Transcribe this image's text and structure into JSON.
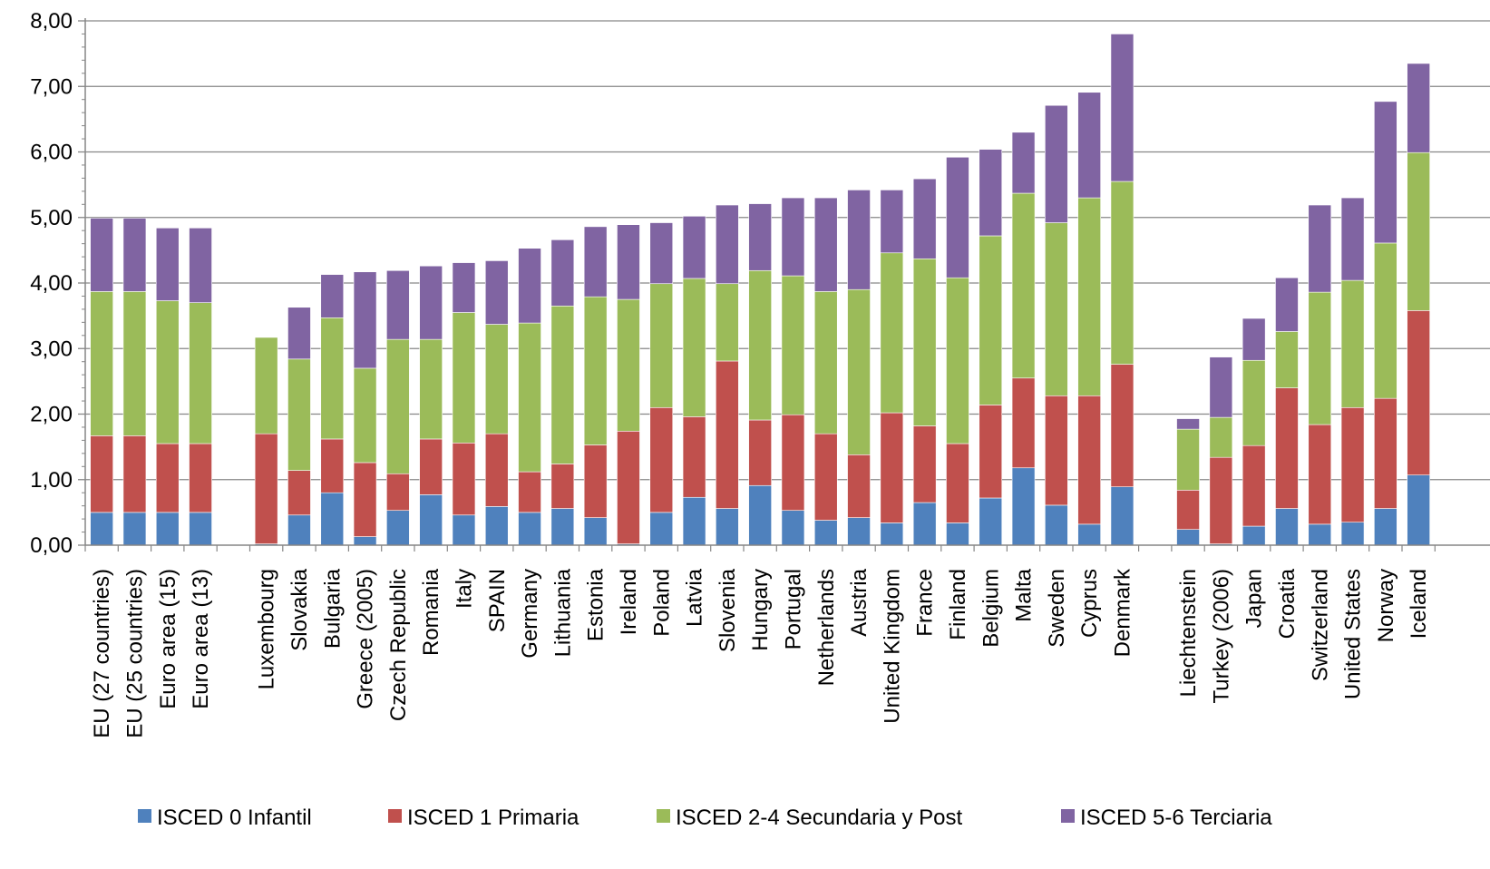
{
  "chart_data": {
    "type": "bar",
    "stacked": true,
    "title": "",
    "xlabel": "",
    "ylabel": "",
    "ylim": [
      0,
      8
    ],
    "yticks": [
      "0,00",
      "1,00",
      "2,00",
      "3,00",
      "4,00",
      "5,00",
      "6,00",
      "7,00",
      "8,00"
    ],
    "grid": true,
    "legend_position": "bottom",
    "categories": [
      "EU (27 countries)",
      "EU (25 countries)",
      "Euro area (15)",
      "Euro area (13)",
      "",
      "Luxembourg",
      "Slovakia",
      "Bulgaria",
      "Greece (2005)",
      "Czech Republic",
      "Romania",
      "Italy",
      "SPAIN",
      "Germany",
      "Lithuania",
      "Estonia",
      "Ireland",
      "Poland",
      "Latvia",
      "Slovenia",
      "Hungary",
      "Portugal",
      "Netherlands",
      "Austria",
      "United Kingdom",
      "France",
      "Finland",
      "Belgium",
      "Malta",
      "Sweden",
      "Cyprus",
      "Denmark",
      "",
      "Liechtenstein",
      "Turkey (2006)",
      "Japan",
      "Croatia",
      "Switzerland",
      "United States",
      "Norway",
      "Iceland"
    ],
    "series": [
      {
        "name": "ISCED 0 Infantil",
        "color": "#4f81bd",
        "values": [
          0.5,
          0.5,
          0.5,
          0.5,
          null,
          0.02,
          0.46,
          0.8,
          0.13,
          0.53,
          0.77,
          0.46,
          0.59,
          0.5,
          0.56,
          0.42,
          0.02,
          0.5,
          0.73,
          0.56,
          0.91,
          0.53,
          0.38,
          0.42,
          0.34,
          0.65,
          0.34,
          0.72,
          1.18,
          0.61,
          0.32,
          0.89,
          null,
          0.24,
          0.02,
          0.29,
          0.56,
          0.32,
          0.35,
          0.56,
          1.07
        ]
      },
      {
        "name": "ISCED 1 Primaria",
        "color": "#c0504d",
        "values": [
          1.17,
          1.17,
          1.05,
          1.05,
          null,
          1.68,
          0.68,
          0.82,
          1.13,
          0.56,
          0.85,
          1.1,
          1.11,
          0.62,
          0.68,
          1.11,
          1.72,
          1.6,
          1.23,
          2.25,
          1.0,
          1.46,
          1.32,
          0.96,
          1.68,
          1.17,
          1.21,
          1.42,
          1.37,
          1.67,
          1.96,
          1.87,
          null,
          0.6,
          1.32,
          1.23,
          1.84,
          1.52,
          1.75,
          1.68,
          2.51
        ]
      },
      {
        "name": "ISCED 2-4 Secundaria  y Post",
        "color": "#9bbb59",
        "values": [
          2.2,
          2.2,
          2.18,
          2.15,
          null,
          1.47,
          1.7,
          1.85,
          1.44,
          2.05,
          1.52,
          1.99,
          1.67,
          2.27,
          2.41,
          2.26,
          2.01,
          1.89,
          2.11,
          1.18,
          2.28,
          2.12,
          2.17,
          2.52,
          2.44,
          2.55,
          2.53,
          2.58,
          2.82,
          2.64,
          3.02,
          2.79,
          null,
          0.93,
          0.61,
          1.3,
          0.86,
          2.02,
          1.94,
          2.37,
          2.41
        ]
      },
      {
        "name": "ISCED 5-6 Terciaria",
        "color": "#8064a2",
        "values": [
          1.12,
          1.12,
          1.11,
          1.14,
          null,
          0.0,
          0.79,
          0.66,
          1.47,
          1.05,
          1.12,
          0.76,
          0.97,
          1.14,
          1.01,
          1.07,
          1.14,
          0.93,
          0.95,
          1.2,
          1.02,
          1.19,
          1.43,
          1.52,
          0.96,
          1.22,
          1.84,
          1.32,
          0.93,
          1.79,
          1.61,
          2.25,
          null,
          0.16,
          0.92,
          0.64,
          0.82,
          1.33,
          1.26,
          2.16,
          1.36
        ]
      }
    ]
  }
}
